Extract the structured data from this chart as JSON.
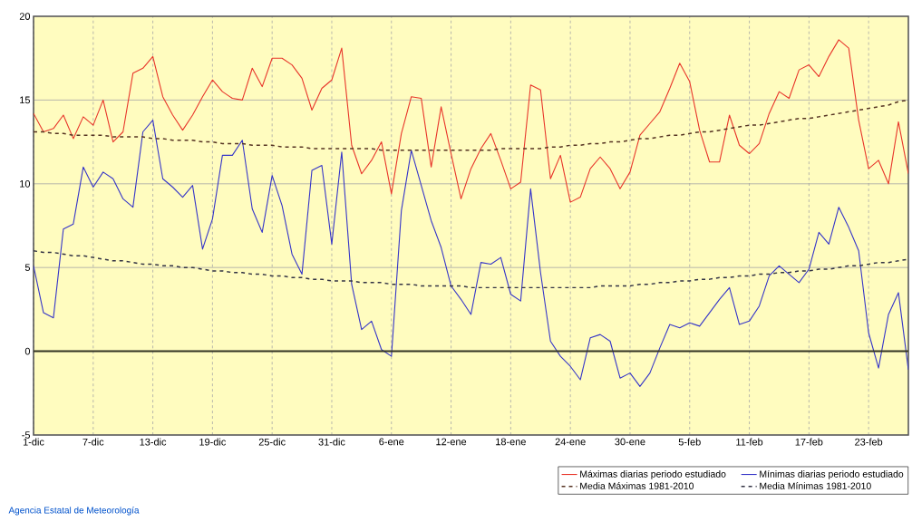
{
  "chart_data": {
    "type": "line",
    "categories": [
      "1-dic",
      null,
      null,
      null,
      null,
      null,
      "7-dic",
      null,
      null,
      null,
      null,
      null,
      "13-dic",
      null,
      null,
      null,
      null,
      null,
      "19-dic",
      null,
      null,
      null,
      null,
      null,
      "25-dic",
      null,
      null,
      null,
      null,
      null,
      "31-dic",
      null,
      null,
      null,
      null,
      null,
      "6-ene",
      null,
      null,
      null,
      null,
      null,
      "12-ene",
      null,
      null,
      null,
      null,
      null,
      "18-ene",
      null,
      null,
      null,
      null,
      null,
      "24-ene",
      null,
      null,
      null,
      null,
      null,
      "30-ene",
      null,
      null,
      null,
      null,
      null,
      "5-feb",
      null,
      null,
      null,
      null,
      null,
      "11-feb",
      null,
      null,
      null,
      null,
      null,
      "17-feb",
      null,
      null,
      null,
      null,
      null,
      "23-feb",
      null,
      null,
      null,
      null
    ],
    "ylim": [
      -5,
      20
    ],
    "yticks": [
      -5,
      0,
      5,
      10,
      15,
      20
    ],
    "grid": true,
    "legend": "bottom right",
    "ref_lines": [
      {
        "axis": "y",
        "value": 0,
        "color": "#333322"
      }
    ],
    "annotations": [
      "Agencia Estatal de Meteorología"
    ],
    "series": [
      {
        "name": "Máximas diarias periodo estudiado",
        "color": "#e8352a",
        "line_style": "solid",
        "values": [
          14.2,
          13.1,
          13.3,
          14.1,
          12.7,
          14.0,
          13.5,
          15.0,
          12.5,
          13.1,
          16.6,
          16.9,
          17.6,
          15.2,
          14.1,
          13.2,
          14.1,
          15.2,
          16.2,
          15.5,
          15.1,
          15.0,
          16.9,
          15.8,
          17.5,
          17.5,
          17.1,
          16.3,
          14.4,
          15.7,
          16.2,
          18.1,
          12.3,
          10.6,
          11.4,
          12.5,
          9.4,
          13.0,
          15.2,
          15.1,
          11.0,
          14.6,
          11.8,
          9.1,
          10.9,
          12.1,
          13.0,
          11.4,
          9.7,
          10.1,
          15.9,
          15.6,
          10.3,
          11.7,
          8.9,
          9.2,
          10.9,
          11.6,
          10.9,
          9.7,
          10.7,
          12.9,
          13.6,
          14.3,
          15.7,
          17.2,
          16.1,
          13.2,
          11.3,
          11.3,
          14.1,
          12.3,
          11.8,
          12.4,
          14.2,
          15.5,
          15.1,
          16.8,
          17.1,
          16.4,
          17.6,
          18.6,
          18.1,
          13.8,
          10.9,
          11.4,
          10.0,
          13.7,
          10.6
        ]
      },
      {
        "name": "Mínimas diarias periodo estudiado",
        "color": "#3535c8",
        "line_style": "solid",
        "values": [
          5.1,
          2.3,
          2.0,
          7.3,
          7.6,
          11.0,
          9.8,
          10.7,
          10.3,
          9.1,
          8.6,
          13.1,
          13.8,
          10.3,
          9.8,
          9.2,
          9.9,
          6.1,
          7.9,
          11.7,
          11.7,
          12.6,
          8.5,
          7.1,
          10.5,
          8.7,
          5.8,
          4.6,
          10.8,
          11.1,
          6.4,
          11.9,
          4.0,
          1.3,
          1.8,
          0.1,
          -0.3,
          8.4,
          12.0,
          9.9,
          7.8,
          6.2,
          3.9,
          3.1,
          2.2,
          5.3,
          5.2,
          5.6,
          3.4,
          3.0,
          9.7,
          4.7,
          0.6,
          -0.3,
          -0.9,
          -1.7,
          0.8,
          1.0,
          0.6,
          -1.6,
          -1.3,
          -2.1,
          -1.3,
          0.2,
          1.6,
          1.4,
          1.7,
          1.5,
          2.3,
          3.1,
          3.8,
          1.6,
          1.8,
          2.7,
          4.5,
          5.1,
          4.6,
          4.1,
          4.9,
          7.1,
          6.4,
          8.6,
          7.4,
          6.0,
          1.1,
          -1.0,
          2.2,
          3.5,
          -1.1
        ]
      },
      {
        "name": "Media Máximas 1981-2010",
        "color": "#553322",
        "line_style": "dashed",
        "values": [
          13.1,
          13.1,
          13.0,
          13.0,
          12.9,
          12.9,
          12.9,
          12.9,
          12.8,
          12.8,
          12.8,
          12.8,
          12.7,
          12.7,
          12.6,
          12.6,
          12.6,
          12.5,
          12.5,
          12.4,
          12.4,
          12.4,
          12.3,
          12.3,
          12.3,
          12.2,
          12.2,
          12.2,
          12.1,
          12.1,
          12.1,
          12.1,
          12.1,
          12.1,
          12.1,
          12.0,
          12.0,
          12.0,
          12.0,
          12.0,
          12.0,
          12.0,
          12.0,
          12.0,
          12.0,
          12.0,
          12.0,
          12.1,
          12.1,
          12.1,
          12.1,
          12.1,
          12.2,
          12.2,
          12.3,
          12.3,
          12.4,
          12.4,
          12.5,
          12.5,
          12.6,
          12.7,
          12.7,
          12.8,
          12.9,
          12.9,
          13.0,
          13.1,
          13.1,
          13.2,
          13.3,
          13.4,
          13.5,
          13.5,
          13.6,
          13.7,
          13.8,
          13.9,
          13.9,
          14.0,
          14.1,
          14.2,
          14.3,
          14.4,
          14.5,
          14.6,
          14.7,
          14.9,
          15.0
        ]
      },
      {
        "name": "Media Mínimas 1981-2010",
        "color": "#333344",
        "line_style": "dashed",
        "values": [
          6.0,
          5.9,
          5.9,
          5.8,
          5.7,
          5.7,
          5.6,
          5.5,
          5.4,
          5.4,
          5.3,
          5.2,
          5.2,
          5.1,
          5.1,
          5.0,
          5.0,
          4.9,
          4.8,
          4.8,
          4.7,
          4.7,
          4.6,
          4.6,
          4.5,
          4.5,
          4.4,
          4.4,
          4.3,
          4.3,
          4.2,
          4.2,
          4.2,
          4.1,
          4.1,
          4.1,
          4.0,
          4.0,
          4.0,
          3.9,
          3.9,
          3.9,
          3.9,
          3.9,
          3.8,
          3.8,
          3.8,
          3.8,
          3.8,
          3.8,
          3.8,
          3.8,
          3.8,
          3.8,
          3.8,
          3.8,
          3.8,
          3.9,
          3.9,
          3.9,
          3.9,
          4.0,
          4.0,
          4.1,
          4.1,
          4.2,
          4.2,
          4.3,
          4.3,
          4.4,
          4.4,
          4.5,
          4.5,
          4.6,
          4.6,
          4.7,
          4.7,
          4.8,
          4.8,
          4.9,
          4.9,
          5.0,
          5.1,
          5.1,
          5.2,
          5.3,
          5.3,
          5.4,
          5.5
        ]
      }
    ]
  }
}
